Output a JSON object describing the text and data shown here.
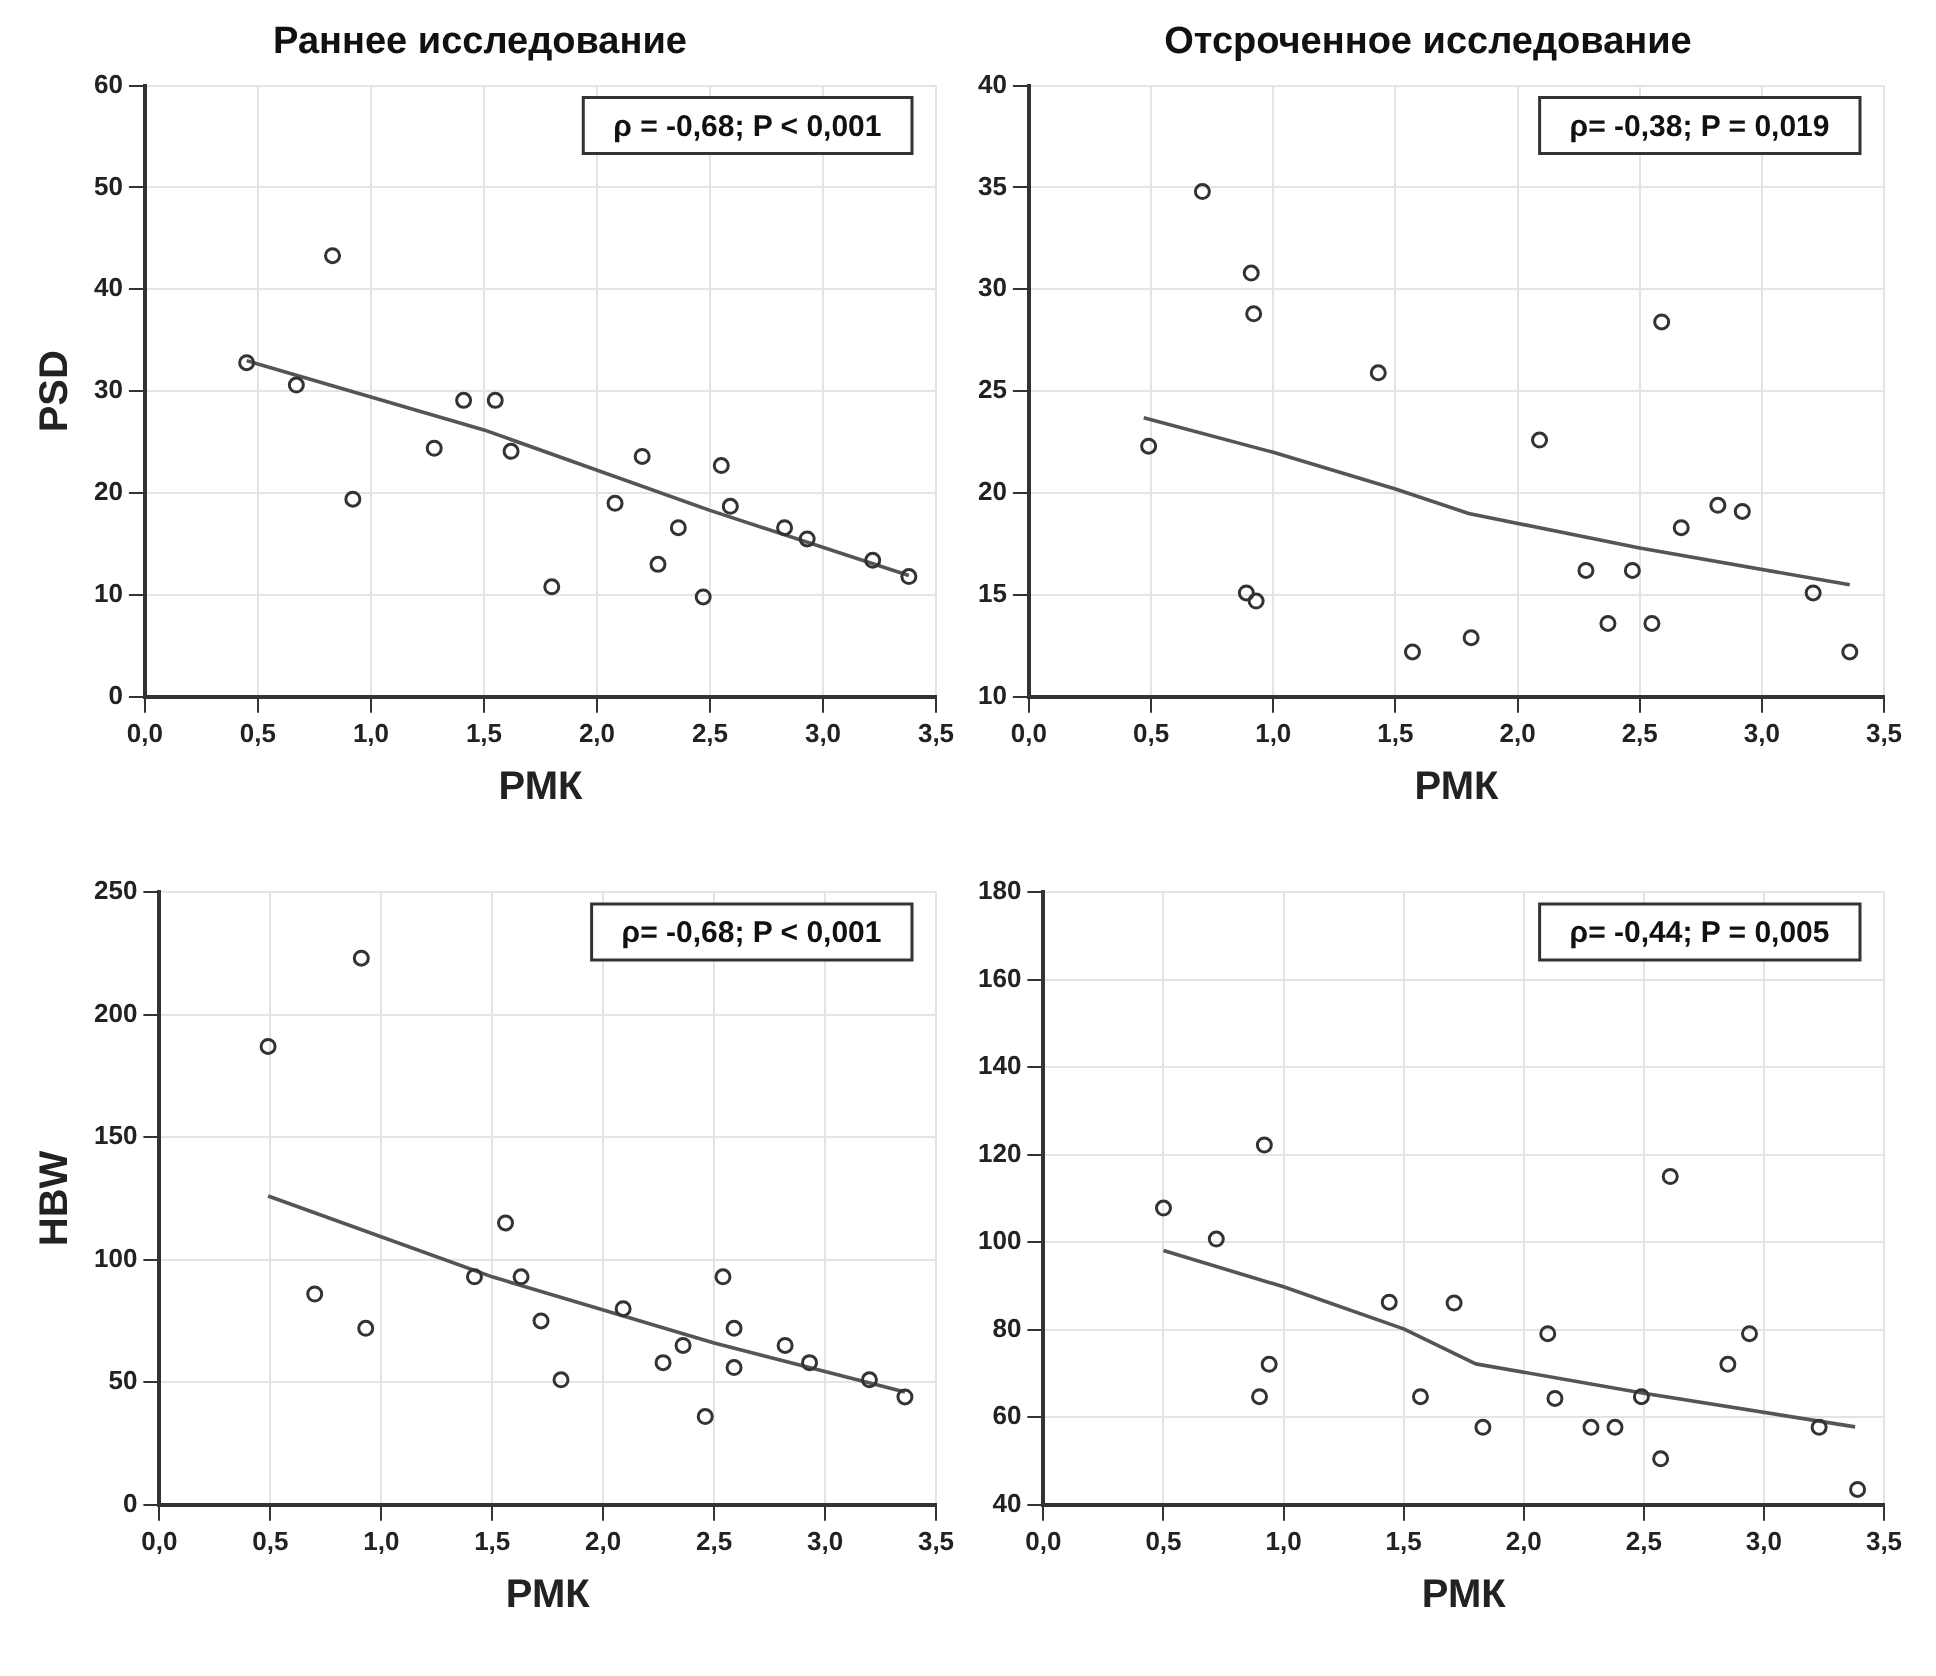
{
  "chart_data": [
    {
      "type": "scatter",
      "title": "Раннее исследование",
      "xlabel": "РМК",
      "ylabel": "PSD",
      "xlim": [
        0,
        3.5
      ],
      "xticks": [
        {
          "value": 0,
          "label": "0,0"
        },
        {
          "value": 0.5,
          "label": "0,5"
        },
        {
          "value": 1,
          "label": "1,0"
        },
        {
          "value": 1.5,
          "label": "1,5"
        },
        {
          "value": 2,
          "label": "2,0"
        },
        {
          "value": 2.5,
          "label": "2,5"
        },
        {
          "value": 3,
          "label": "3,0"
        },
        {
          "value": 3.5,
          "label": "3,5"
        }
      ],
      "ylim": [
        0,
        60
      ],
      "yticks": [
        0,
        10,
        20,
        30,
        40,
        50,
        60
      ],
      "grid": true,
      "legend": false,
      "annotations": [
        "ρ = -0,68; P < 0,001"
      ],
      "series": [
        {
          "type": "scatter",
          "color": "#333333",
          "marker": "circle",
          "x": [
            0.45,
            0.67,
            0.83,
            0.92,
            1.28,
            1.41,
            1.55,
            1.62,
            1.8,
            2.08,
            2.2,
            2.27,
            2.36,
            2.47,
            2.55,
            2.59,
            2.83,
            2.93,
            3.22,
            3.38
          ],
          "values": [
            32.8,
            30.6,
            43.3,
            19.4,
            24.4,
            29.1,
            29.1,
            24.1,
            10.8,
            19.0,
            23.6,
            13.0,
            16.6,
            9.8,
            22.7,
            18.7,
            16.6,
            15.5,
            13.4,
            11.8
          ]
        },
        {
          "type": "line",
          "color": "#555555",
          "marker": "none",
          "line_style": "solid",
          "x": [
            0.45,
            1.5,
            2.5,
            3.38
          ],
          "values": [
            33,
            26.2,
            18.3,
            11.9
          ]
        }
      ]
    },
    {
      "type": "scatter",
      "title": "Отсроченное исследование",
      "xlabel": "РМК",
      "xlim": [
        0,
        3.5
      ],
      "xticks": [
        {
          "value": 0,
          "label": "0,0"
        },
        {
          "value": 0.5,
          "label": "0,5"
        },
        {
          "value": 1,
          "label": "1,0"
        },
        {
          "value": 1.5,
          "label": "1,5"
        },
        {
          "value": 2,
          "label": "2,0"
        },
        {
          "value": 2.5,
          "label": "2,5"
        },
        {
          "value": 3,
          "label": "3,0"
        },
        {
          "value": 3.5,
          "label": "3,5"
        }
      ],
      "ylim": [
        10,
        40
      ],
      "yticks": [
        10,
        15,
        20,
        25,
        30,
        35,
        40
      ],
      "grid": true,
      "legend": false,
      "annotations": [
        "ρ= -0,38; P = 0,019"
      ],
      "series": [
        {
          "type": "scatter",
          "color": "#333333",
          "marker": "circle",
          "x": [
            0.49,
            0.71,
            0.91,
            0.92,
            0.89,
            0.93,
            1.43,
            1.57,
            1.81,
            2.09,
            2.28,
            2.37,
            2.47,
            2.55,
            2.59,
            2.67,
            2.82,
            2.92,
            3.21,
            3.36
          ],
          "values": [
            22.3,
            34.8,
            30.8,
            28.8,
            15.1,
            14.7,
            25.9,
            12.2,
            12.9,
            22.6,
            16.2,
            13.6,
            16.2,
            13.6,
            28.4,
            18.3,
            19.4,
            19.1,
            15.1,
            12.2
          ]
        },
        {
          "type": "line",
          "color": "#555555",
          "marker": "none",
          "line_style": "solid",
          "x": [
            0.47,
            1.0,
            1.5,
            1.8,
            2.5,
            3.36
          ],
          "values": [
            23.7,
            22.0,
            20.2,
            19.0,
            17.3,
            15.5
          ]
        }
      ]
    },
    {
      "type": "scatter",
      "xlabel": "РМК",
      "ylabel": "HBW",
      "xlim": [
        0,
        3.5
      ],
      "xticks": [
        {
          "value": 0,
          "label": "0,0"
        },
        {
          "value": 0.5,
          "label": "0,5"
        },
        {
          "value": 1,
          "label": "1,0"
        },
        {
          "value": 1.5,
          "label": "1,5"
        },
        {
          "value": 2,
          "label": "2,0"
        },
        {
          "value": 2.5,
          "label": "2,5"
        },
        {
          "value": 3,
          "label": "3,0"
        },
        {
          "value": 3.5,
          "label": "3,5"
        }
      ],
      "ylim": [
        0,
        250
      ],
      "yticks": [
        0,
        50,
        100,
        150,
        200,
        250
      ],
      "grid": true,
      "legend": false,
      "annotations": [
        "ρ= -0,68; P < 0,001"
      ],
      "series": [
        {
          "type": "scatter",
          "color": "#333333",
          "marker": "circle",
          "x": [
            0.49,
            0.91,
            0.7,
            0.93,
            1.42,
            1.56,
            1.63,
            1.72,
            1.81,
            2.09,
            2.27,
            2.36,
            2.46,
            2.54,
            2.59,
            2.59,
            2.82,
            2.93,
            3.2,
            3.36
          ],
          "values": [
            187,
            223,
            86,
            72,
            93,
            115,
            93,
            75,
            51,
            80,
            58,
            65,
            36,
            93,
            72,
            56,
            65,
            58,
            51,
            44
          ]
        },
        {
          "type": "line",
          "color": "#555555",
          "marker": "none",
          "line_style": "solid",
          "x": [
            0.49,
            1.5,
            2.5,
            3.36
          ],
          "values": [
            126,
            93,
            66,
            46
          ]
        }
      ]
    },
    {
      "type": "scatter",
      "xlabel": "РМК",
      "xlim": [
        0,
        3.5
      ],
      "xticks": [
        {
          "value": 0,
          "label": "0,0"
        },
        {
          "value": 0.5,
          "label": "0,5"
        },
        {
          "value": 1,
          "label": "1,0"
        },
        {
          "value": 1.5,
          "label": "1,5"
        },
        {
          "value": 2,
          "label": "2,0"
        },
        {
          "value": 2.5,
          "label": "2,5"
        },
        {
          "value": 3,
          "label": "3,0"
        },
        {
          "value": 3.5,
          "label": "3,5"
        }
      ],
      "ylim": [
        40,
        180
      ],
      "yticks": [
        40,
        60,
        80,
        100,
        120,
        140,
        160,
        180
      ],
      "grid": true,
      "legend": false,
      "annotations": [
        "ρ= -0,44; P = 0,005"
      ],
      "series": [
        {
          "type": "scatter",
          "color": "#333333",
          "marker": "circle",
          "x": [
            0.5,
            0.72,
            0.92,
            0.9,
            0.94,
            1.44,
            1.57,
            1.71,
            1.83,
            2.1,
            2.13,
            2.28,
            2.38,
            2.49,
            2.57,
            2.61,
            2.85,
            2.94,
            3.23,
            3.39
          ],
          "values": [
            107.8,
            100.7,
            122.2,
            64.7,
            72.1,
            86.3,
            64.7,
            86.1,
            57.7,
            79.1,
            64.3,
            57.7,
            57.7,
            64.7,
            50.5,
            115,
            72.1,
            79.1,
            57.7,
            43.5
          ]
        },
        {
          "type": "line",
          "color": "#555555",
          "marker": "none",
          "line_style": "solid",
          "x": [
            0.5,
            1.0,
            1.5,
            1.8,
            2.5,
            3.38
          ],
          "values": [
            98.1,
            89.8,
            80.2,
            72.2,
            65.5,
            57.8
          ]
        }
      ]
    }
  ]
}
